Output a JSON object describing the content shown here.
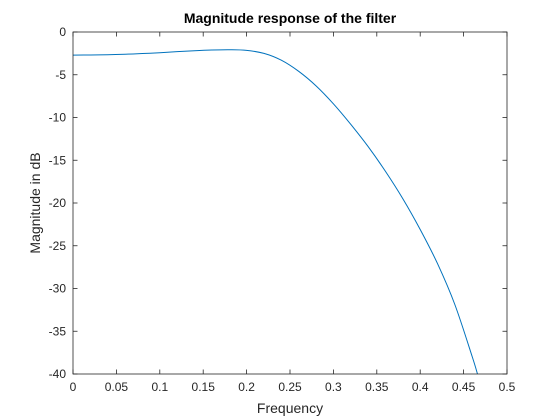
{
  "chart_data": {
    "type": "line",
    "title": "Magnitude response of the filter",
    "xlabel": "Frequency",
    "ylabel": "Magnitude in dB",
    "xlim": [
      0,
      0.5
    ],
    "ylim": [
      -40,
      0
    ],
    "xticks": [
      0,
      0.05,
      0.1,
      0.15,
      0.2,
      0.25,
      0.3,
      0.35,
      0.4,
      0.45,
      0.5
    ],
    "xtick_labels": [
      "0",
      "0.05",
      "0.1",
      "0.15",
      "0.2",
      "0.25",
      "0.3",
      "0.35",
      "0.4",
      "0.45",
      "0.5"
    ],
    "yticks": [
      0,
      -5,
      -10,
      -15,
      -20,
      -25,
      -30,
      -35,
      -40
    ],
    "ytick_labels": [
      "0",
      "-5",
      "-10",
      "-15",
      "-20",
      "-25",
      "-30",
      "-35",
      "-40"
    ],
    "grid": false,
    "box": true,
    "series": [
      {
        "color": "#0072BD",
        "x": [
          0,
          0.02,
          0.04,
          0.06,
          0.08,
          0.1,
          0.12,
          0.14,
          0.16,
          0.18,
          0.2,
          0.22,
          0.24,
          0.26,
          0.28,
          0.3,
          0.32,
          0.34,
          0.36,
          0.38,
          0.4,
          0.42,
          0.44,
          0.46,
          0.466
        ],
        "y": [
          -2.7,
          -2.69,
          -2.66,
          -2.6,
          -2.52,
          -2.42,
          -2.3,
          -2.19,
          -2.11,
          -2.08,
          -2.15,
          -2.5,
          -3.3,
          -4.6,
          -6.3,
          -8.4,
          -10.8,
          -13.4,
          -16.3,
          -19.5,
          -23.1,
          -27.1,
          -31.9,
          -38.0,
          -40.0
        ]
      }
    ]
  }
}
